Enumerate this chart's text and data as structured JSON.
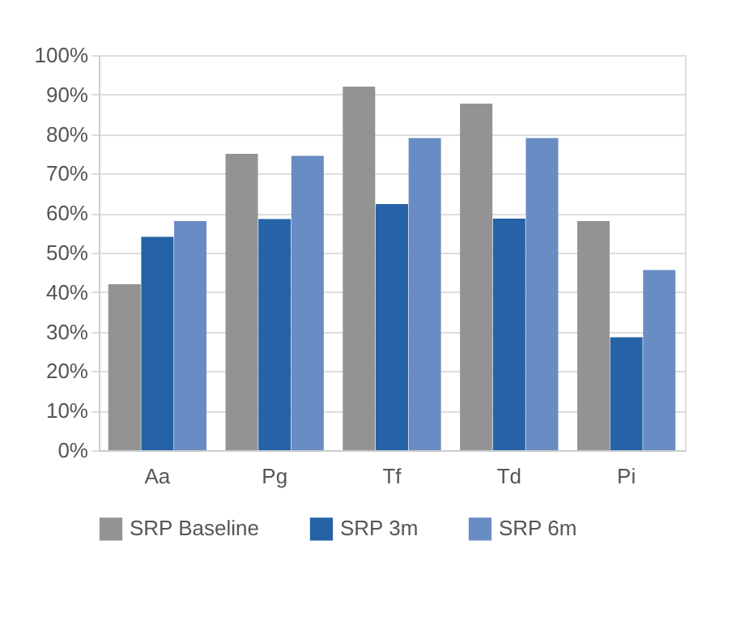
{
  "chart_data": {
    "type": "bar",
    "categories": [
      "Aa",
      "Pg",
      "Tf",
      "Td",
      "Pi"
    ],
    "series": [
      {
        "name": "SRP Baseline",
        "color": "#939393",
        "values": [
          42,
          75,
          92,
          87.7,
          58
        ]
      },
      {
        "name": "SRP 3m",
        "color": "#2563a6",
        "values": [
          54,
          58.5,
          62.3,
          58.6,
          28.6
        ]
      },
      {
        "name": "SRP 6m",
        "color": "#6a8cc4",
        "values": [
          58,
          74.5,
          79,
          79,
          45.6
        ]
      }
    ],
    "ylim": [
      0,
      100
    ],
    "yticks": [
      {
        "value": 0,
        "label": "0%"
      },
      {
        "value": 10,
        "label": "10%"
      },
      {
        "value": 20,
        "label": "20%"
      },
      {
        "value": 30,
        "label": "30%"
      },
      {
        "value": 40,
        "label": "40%"
      },
      {
        "value": 50,
        "label": "50%"
      },
      {
        "value": 60,
        "label": "60%"
      },
      {
        "value": 70,
        "label": "70%"
      },
      {
        "value": 80,
        "label": "80%"
      },
      {
        "value": 90,
        "label": "90%"
      },
      {
        "value": 100,
        "label": "100%"
      }
    ],
    "grid": "y",
    "legend": "bottom"
  }
}
